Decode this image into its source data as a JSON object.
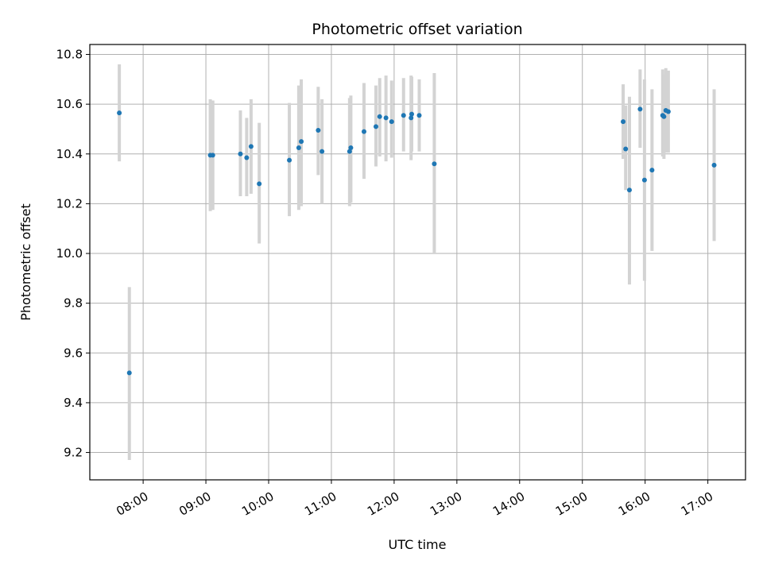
{
  "chart_data": {
    "type": "scatter",
    "title": "Photometric offset variation",
    "xlabel": "UTC time",
    "ylabel": "Photometric offset",
    "x_unit": "hours UTC",
    "xlim": [
      7.15,
      17.6
    ],
    "ylim": [
      9.09,
      10.84
    ],
    "x_ticks": [
      {
        "value": 8,
        "label": "08:00"
      },
      {
        "value": 9,
        "label": "09:00"
      },
      {
        "value": 10,
        "label": "10:00"
      },
      {
        "value": 11,
        "label": "11:00"
      },
      {
        "value": 12,
        "label": "12:00"
      },
      {
        "value": 13,
        "label": "13:00"
      },
      {
        "value": 14,
        "label": "14:00"
      },
      {
        "value": 15,
        "label": "15:00"
      },
      {
        "value": 16,
        "label": "16:00"
      },
      {
        "value": 17,
        "label": "17:00"
      }
    ],
    "y_ticks": [
      {
        "value": 9.2,
        "label": "9.2"
      },
      {
        "value": 9.4,
        "label": "9.4"
      },
      {
        "value": 9.6,
        "label": "9.6"
      },
      {
        "value": 9.8,
        "label": "9.8"
      },
      {
        "value": 10.0,
        "label": "10.0"
      },
      {
        "value": 10.2,
        "label": "10.2"
      },
      {
        "value": 10.4,
        "label": "10.4"
      },
      {
        "value": 10.6,
        "label": "10.6"
      },
      {
        "value": 10.8,
        "label": "10.8"
      }
    ],
    "grid": true,
    "marker_color": "#1f77b4",
    "errorbar_color": "#d3d3d3",
    "points": [
      {
        "x": 7.62,
        "y": 10.565,
        "lo": 10.37,
        "hi": 10.76
      },
      {
        "x": 7.78,
        "y": 9.52,
        "lo": 9.17,
        "hi": 9.865
      },
      {
        "x": 9.07,
        "y": 10.395,
        "lo": 10.17,
        "hi": 10.62
      },
      {
        "x": 9.11,
        "y": 10.395,
        "lo": 10.175,
        "hi": 10.615
      },
      {
        "x": 9.55,
        "y": 10.4,
        "lo": 10.23,
        "hi": 10.575
      },
      {
        "x": 9.65,
        "y": 10.385,
        "lo": 10.23,
        "hi": 10.545
      },
      {
        "x": 9.72,
        "y": 10.43,
        "lo": 10.24,
        "hi": 10.62
      },
      {
        "x": 9.85,
        "y": 10.28,
        "lo": 10.04,
        "hi": 10.525
      },
      {
        "x": 10.33,
        "y": 10.375,
        "lo": 10.15,
        "hi": 10.605
      },
      {
        "x": 10.48,
        "y": 10.425,
        "lo": 10.175,
        "hi": 10.675
      },
      {
        "x": 10.52,
        "y": 10.45,
        "lo": 10.19,
        "hi": 10.7
      },
      {
        "x": 10.79,
        "y": 10.495,
        "lo": 10.315,
        "hi": 10.67
      },
      {
        "x": 10.85,
        "y": 10.41,
        "lo": 10.2,
        "hi": 10.62
      },
      {
        "x": 11.29,
        "y": 10.41,
        "lo": 10.19,
        "hi": 10.625
      },
      {
        "x": 11.31,
        "y": 10.425,
        "lo": 10.205,
        "hi": 10.635
      },
      {
        "x": 11.52,
        "y": 10.49,
        "lo": 10.3,
        "hi": 10.685
      },
      {
        "x": 11.71,
        "y": 10.51,
        "lo": 10.35,
        "hi": 10.675
      },
      {
        "x": 11.77,
        "y": 10.55,
        "lo": 10.39,
        "hi": 10.705
      },
      {
        "x": 11.87,
        "y": 10.545,
        "lo": 10.37,
        "hi": 10.715
      },
      {
        "x": 11.96,
        "y": 10.53,
        "lo": 10.385,
        "hi": 10.695
      },
      {
        "x": 12.15,
        "y": 10.555,
        "lo": 10.41,
        "hi": 10.705
      },
      {
        "x": 12.27,
        "y": 10.545,
        "lo": 10.375,
        "hi": 10.715
      },
      {
        "x": 12.28,
        "y": 10.56,
        "lo": 10.41,
        "hi": 10.71
      },
      {
        "x": 12.4,
        "y": 10.555,
        "lo": 10.41,
        "hi": 10.7
      },
      {
        "x": 12.64,
        "y": 10.36,
        "lo": 10.0,
        "hi": 10.725
      },
      {
        "x": 15.65,
        "y": 10.53,
        "lo": 10.38,
        "hi": 10.68
      },
      {
        "x": 15.69,
        "y": 10.42,
        "lo": 10.255,
        "hi": 10.595
      },
      {
        "x": 15.75,
        "y": 10.255,
        "lo": 9.875,
        "hi": 10.63
      },
      {
        "x": 15.92,
        "y": 10.58,
        "lo": 10.425,
        "hi": 10.74
      },
      {
        "x": 15.99,
        "y": 10.295,
        "lo": 9.89,
        "hi": 10.7
      },
      {
        "x": 16.11,
        "y": 10.335,
        "lo": 10.01,
        "hi": 10.66
      },
      {
        "x": 16.28,
        "y": 10.555,
        "lo": 10.39,
        "hi": 10.74
      },
      {
        "x": 16.3,
        "y": 10.55,
        "lo": 10.38,
        "hi": 10.72
      },
      {
        "x": 16.33,
        "y": 10.575,
        "lo": 10.405,
        "hi": 10.745
      },
      {
        "x": 16.37,
        "y": 10.57,
        "lo": 10.405,
        "hi": 10.735
      },
      {
        "x": 17.1,
        "y": 10.355,
        "lo": 10.05,
        "hi": 10.66
      }
    ]
  }
}
